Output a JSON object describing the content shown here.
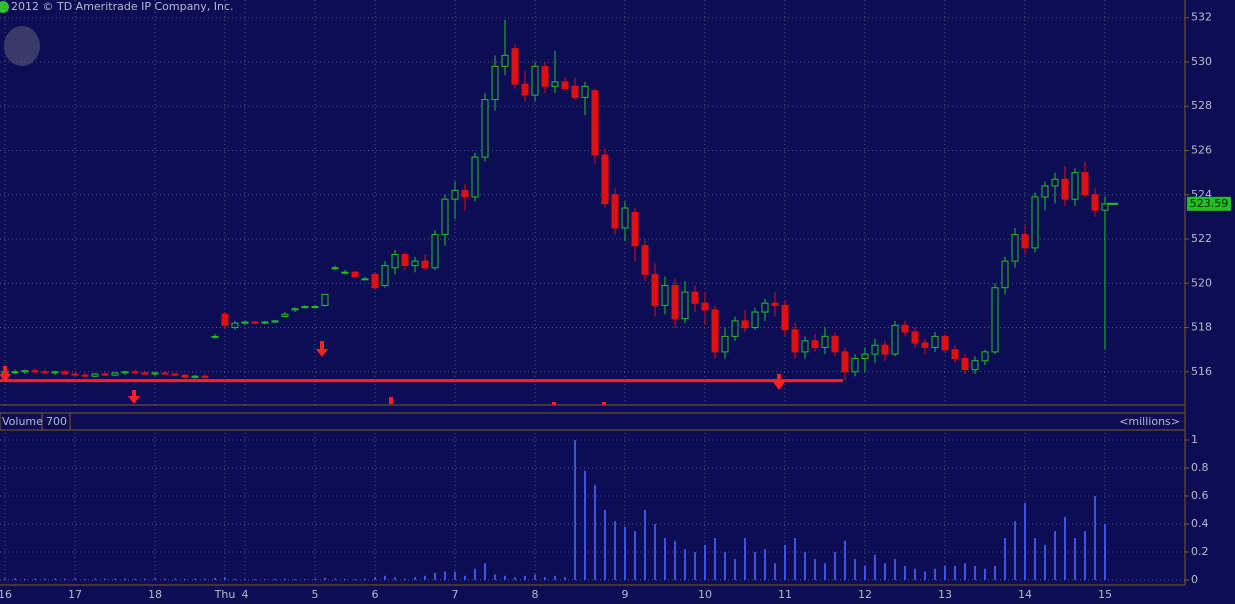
{
  "copyright": "2012 © TD Ameritrade IP Company, Inc.",
  "chart_data": [
    {
      "type": "candlestick",
      "categories": [
        "16",
        null,
        null,
        null,
        null,
        null,
        null,
        "17",
        null,
        null,
        null,
        null,
        null,
        null,
        null,
        "18",
        null,
        null,
        null,
        null,
        null,
        null,
        "Thu",
        null,
        "4",
        null,
        null,
        null,
        null,
        null,
        null,
        "5",
        null,
        null,
        null,
        null,
        null,
        "6",
        null,
        null,
        null,
        null,
        null,
        null,
        null,
        "7",
        null,
        null,
        null,
        null,
        null,
        null,
        null,
        "8",
        null,
        null,
        null,
        null,
        null,
        null,
        null,
        null,
        "9",
        null,
        null,
        null,
        null,
        null,
        null,
        null,
        "10",
        null,
        null,
        null,
        null,
        null,
        null,
        null,
        "11",
        null,
        null,
        null,
        null,
        null,
        null,
        null,
        "12",
        null,
        null,
        null,
        null,
        null,
        null,
        null,
        "13",
        null,
        null,
        null,
        null,
        null,
        null,
        null,
        "14",
        null,
        null,
        null,
        null,
        null,
        null,
        null,
        "15"
      ],
      "candles": [
        [
          515.9,
          516.1,
          515.8,
          516.0
        ],
        [
          516.0,
          516.1,
          515.9,
          516.0
        ],
        [
          516.0,
          516.1,
          515.9,
          516.05
        ],
        [
          516.05,
          516.15,
          515.95,
          516.0
        ],
        [
          516.0,
          516.1,
          515.9,
          515.95
        ],
        [
          515.95,
          516.05,
          515.85,
          516.0
        ],
        [
          516.0,
          516.1,
          515.9,
          515.9
        ],
        [
          515.9,
          516.0,
          515.8,
          515.85
        ],
        [
          515.85,
          515.95,
          515.75,
          515.8
        ],
        [
          515.8,
          515.95,
          515.75,
          515.9
        ],
        [
          515.9,
          516.0,
          515.8,
          515.85
        ],
        [
          515.85,
          516.0,
          515.8,
          515.95
        ],
        [
          515.95,
          516.05,
          515.85,
          516.0
        ],
        [
          516.0,
          516.1,
          515.9,
          515.95
        ],
        [
          515.95,
          516.05,
          515.85,
          515.9
        ],
        [
          515.9,
          516.0,
          515.8,
          515.95
        ],
        [
          515.95,
          516.05,
          515.85,
          515.9
        ],
        [
          515.9,
          515.95,
          515.8,
          515.85
        ],
        [
          515.85,
          515.9,
          515.7,
          515.75
        ],
        [
          515.75,
          515.85,
          515.7,
          515.8
        ],
        [
          515.8,
          515.9,
          515.7,
          515.75
        ],
        [
          517.6,
          517.7,
          517.5,
          517.6
        ],
        [
          518.6,
          518.7,
          518.0,
          518.1
        ],
        [
          518.0,
          518.3,
          517.9,
          518.2
        ],
        [
          518.2,
          518.3,
          518.1,
          518.25
        ],
        [
          518.25,
          518.3,
          518.15,
          518.2
        ],
        [
          518.2,
          518.3,
          518.15,
          518.25
        ],
        [
          518.25,
          518.35,
          518.2,
          518.3
        ],
        [
          518.5,
          518.7,
          518.5,
          518.6
        ],
        [
          518.8,
          518.9,
          518.7,
          518.85
        ],
        [
          518.9,
          519.0,
          518.85,
          518.95
        ],
        [
          518.95,
          519.0,
          518.9,
          518.95
        ],
        [
          519.0,
          519.5,
          518.95,
          519.5
        ],
        [
          520.7,
          520.8,
          520.6,
          520.7
        ],
        [
          520.5,
          520.6,
          520.4,
          520.5
        ],
        [
          520.5,
          520.55,
          520.3,
          520.3
        ],
        [
          520.2,
          520.3,
          520.15,
          520.2
        ],
        [
          520.4,
          520.5,
          519.7,
          519.8
        ],
        [
          519.9,
          521.0,
          519.8,
          520.8
        ],
        [
          520.7,
          521.5,
          520.4,
          521.3
        ],
        [
          521.3,
          521.4,
          520.6,
          520.8
        ],
        [
          520.8,
          521.2,
          520.5,
          521.0
        ],
        [
          521.0,
          521.3,
          520.6,
          520.7
        ],
        [
          520.7,
          522.4,
          520.6,
          522.2
        ],
        [
          522.2,
          524.0,
          521.7,
          523.8
        ],
        [
          523.8,
          524.6,
          522.9,
          524.2
        ],
        [
          524.2,
          524.5,
          523.3,
          523.9
        ],
        [
          523.9,
          525.9,
          523.7,
          525.7
        ],
        [
          525.7,
          528.6,
          525.5,
          528.3
        ],
        [
          528.3,
          530.3,
          527.8,
          529.8
        ],
        [
          529.8,
          531.9,
          529.4,
          530.3
        ],
        [
          530.6,
          530.8,
          528.8,
          529.0
        ],
        [
          529.0,
          529.6,
          528.2,
          528.5
        ],
        [
          528.5,
          530.0,
          528.2,
          529.8
        ],
        [
          529.8,
          530.0,
          528.6,
          528.9
        ],
        [
          528.9,
          530.5,
          528.6,
          529.1
        ],
        [
          529.1,
          529.3,
          528.7,
          528.8
        ],
        [
          528.9,
          529.3,
          528.3,
          528.4
        ],
        [
          528.4,
          529.1,
          527.6,
          528.9
        ],
        [
          528.7,
          528.8,
          525.4,
          525.8
        ],
        [
          525.8,
          526.1,
          523.4,
          523.6
        ],
        [
          524.0,
          524.3,
          522.2,
          522.5
        ],
        [
          522.5,
          523.7,
          521.9,
          523.4
        ],
        [
          523.2,
          523.4,
          521.0,
          521.7
        ],
        [
          521.7,
          522.0,
          520.1,
          520.4
        ],
        [
          520.4,
          520.9,
          518.5,
          519.0
        ],
        [
          519.0,
          520.3,
          518.6,
          519.9
        ],
        [
          519.9,
          520.2,
          518.0,
          518.4
        ],
        [
          518.4,
          520.1,
          518.2,
          519.6
        ],
        [
          519.6,
          519.9,
          518.7,
          519.1
        ],
        [
          519.1,
          519.6,
          518.1,
          518.8
        ],
        [
          518.8,
          519.0,
          516.6,
          516.9
        ],
        [
          516.9,
          518.0,
          516.6,
          517.6
        ],
        [
          517.6,
          518.5,
          517.4,
          518.3
        ],
        [
          518.3,
          518.8,
          517.8,
          518.0
        ],
        [
          518.0,
          518.9,
          517.9,
          518.7
        ],
        [
          518.7,
          519.3,
          518.3,
          519.1
        ],
        [
          519.1,
          519.6,
          518.5,
          519.0
        ],
        [
          519.0,
          519.2,
          517.6,
          517.9
        ],
        [
          517.9,
          518.2,
          516.6,
          516.9
        ],
        [
          516.9,
          517.6,
          516.6,
          517.4
        ],
        [
          517.4,
          517.7,
          516.9,
          517.1
        ],
        [
          517.1,
          518.0,
          516.8,
          517.6
        ],
        [
          517.6,
          517.8,
          516.7,
          516.9
        ],
        [
          516.9,
          517.1,
          515.6,
          516.0
        ],
        [
          516.0,
          516.8,
          515.8,
          516.6
        ],
        [
          516.6,
          517.1,
          516.0,
          516.8
        ],
        [
          516.8,
          517.5,
          516.4,
          517.2
        ],
        [
          517.2,
          517.4,
          516.5,
          516.8
        ],
        [
          516.8,
          518.3,
          516.7,
          518.1
        ],
        [
          518.1,
          518.3,
          517.6,
          517.8
        ],
        [
          517.8,
          518.0,
          517.1,
          517.3
        ],
        [
          517.3,
          517.5,
          516.8,
          517.1
        ],
        [
          517.1,
          517.8,
          516.9,
          517.6
        ],
        [
          517.6,
          517.7,
          516.9,
          517.0
        ],
        [
          517.0,
          517.2,
          516.4,
          516.6
        ],
        [
          516.6,
          516.8,
          515.9,
          516.1
        ],
        [
          516.1,
          516.7,
          515.9,
          516.5
        ],
        [
          516.5,
          517.0,
          516.3,
          516.9
        ],
        [
          516.9,
          520.0,
          516.8,
          519.8
        ],
        [
          519.8,
          521.2,
          519.5,
          521.0
        ],
        [
          521.0,
          522.5,
          520.7,
          522.2
        ],
        [
          522.2,
          522.6,
          521.3,
          521.6
        ],
        [
          521.6,
          524.1,
          521.4,
          523.9
        ],
        [
          523.9,
          524.6,
          523.3,
          524.4
        ],
        [
          524.4,
          525.0,
          523.6,
          524.7
        ],
        [
          524.7,
          525.3,
          523.5,
          523.8
        ],
        [
          523.8,
          525.2,
          523.5,
          525.0
        ],
        [
          525.0,
          525.5,
          523.9,
          524.0
        ],
        [
          524.0,
          524.3,
          523.0,
          523.3
        ],
        [
          523.3,
          523.9,
          517.0,
          523.59
        ]
      ],
      "up_color": "#22c022",
      "down_color": "#e01010",
      "ylim": [
        514.5,
        532.8
      ],
      "yticks": [
        516,
        518,
        520,
        522,
        524,
        526,
        528,
        530,
        532
      ],
      "support_line": 515.6,
      "last_price": 523.59,
      "grid": true
    },
    {
      "type": "bar",
      "label": "Volume",
      "label_value": "700",
      "unit_label": "<millions>",
      "color": "#3b55e0",
      "values": [
        0.01,
        0.012,
        0.008,
        0.01,
        0.009,
        0.011,
        0.01,
        0.012,
        0.008,
        0.01,
        0.009,
        0.01,
        0.011,
        0.008,
        0.01,
        0.012,
        0.009,
        0.01,
        0.008,
        0.01,
        0.009,
        0.015,
        0.02,
        0.008,
        0.006,
        0.007,
        0.006,
        0.008,
        0.01,
        0.007,
        0.006,
        0.008,
        0.015,
        0.01,
        0.008,
        0.007,
        0.01,
        0.02,
        0.03,
        0.02,
        0.01,
        0.02,
        0.03,
        0.05,
        0.06,
        0.06,
        0.03,
        0.08,
        0.12,
        0.04,
        0.03,
        0.02,
        0.03,
        0.04,
        0.02,
        0.03,
        0.02,
        1.0,
        0.78,
        0.68,
        0.5,
        0.42,
        0.38,
        0.35,
        0.5,
        0.4,
        0.3,
        0.28,
        0.22,
        0.2,
        0.25,
        0.3,
        0.2,
        0.15,
        0.3,
        0.2,
        0.22,
        0.12,
        0.25,
        0.3,
        0.2,
        0.15,
        0.12,
        0.2,
        0.28,
        0.15,
        0.1,
        0.18,
        0.12,
        0.15,
        0.1,
        0.08,
        0.06,
        0.08,
        0.1,
        0.1,
        0.12,
        0.1,
        0.08,
        0.1,
        0.3,
        0.42,
        0.55,
        0.3,
        0.25,
        0.35,
        0.45,
        0.3,
        0.35,
        0.6,
        0.4
      ],
      "ylim": [
        0,
        1.05
      ],
      "yticks": [
        0,
        0.2,
        0.4,
        0.6,
        0.8,
        1
      ],
      "grid": true
    }
  ]
}
